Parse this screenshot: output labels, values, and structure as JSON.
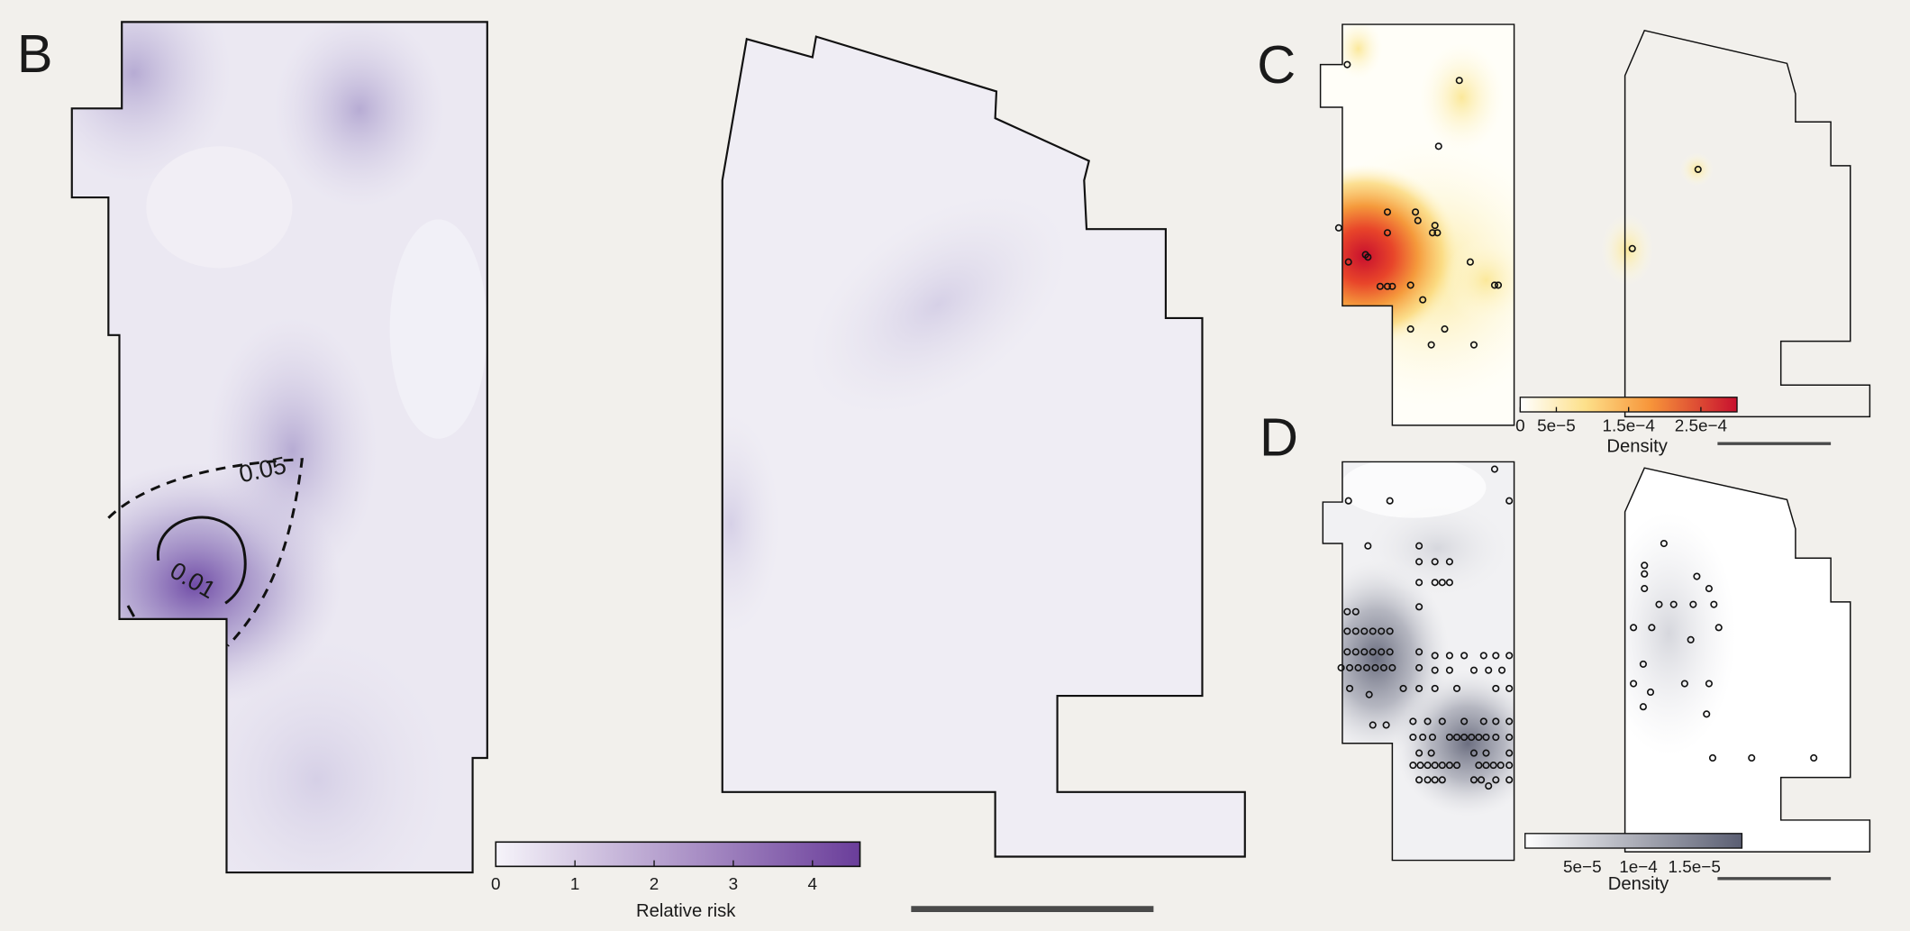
{
  "panels": {
    "B": {
      "label": "B",
      "contour_labels": [
        "0.05",
        "0.01"
      ],
      "colorbar": {
        "title": "Relative risk",
        "lim": [
          0,
          4.6
        ],
        "ticks": [
          0,
          1,
          2,
          3,
          4
        ]
      }
    },
    "C": {
      "label": "C",
      "colorbar": {
        "title": "Density",
        "lim": [
          0,
          0.0003
        ],
        "ticks": [
          0,
          {
            "value": 5e-05,
            "label": "5e−5"
          },
          {
            "value": 0.00015,
            "label": "1.5e−4"
          },
          {
            "value": 0.00025,
            "label": "2.5e−4"
          }
        ]
      }
    },
    "D": {
      "label": "D",
      "colorbar": {
        "title": "Density",
        "tick_labels": [
          "5e−5",
          "1e−4",
          "1.5e−5"
        ]
      }
    }
  }
}
